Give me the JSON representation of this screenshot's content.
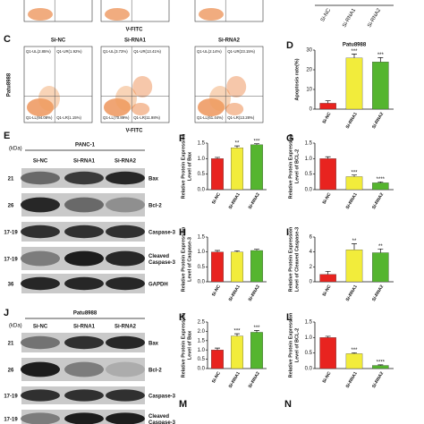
{
  "top_fragment": {
    "x_label": "V-FITC",
    "categories": [
      "Si-NC",
      "Si-RNA1",
      "Si-RNA2"
    ]
  },
  "flow": {
    "label": "C",
    "columns": [
      "Si-NC",
      "Si-RNA1",
      "Si-RNA2"
    ],
    "row_label": "Patu8988",
    "x_label": "V-FITC",
    "quadrants": [
      [
        "Q1-UL(2.85%)",
        "Q1-UR(1.92%)",
        "Q1-LL(94.08%)",
        "Q1-LR(1.15%)"
      ],
      [
        "Q1-UL(3.73%)",
        "Q1-UR(13.41%)",
        "Q1-LL(70.89%)",
        "Q1-LR(11.98%)"
      ],
      [
        "Q1-UL(2.14%)",
        "Q1-UR(23.15%)",
        "Q1-LL(61.44%)",
        "Q1-LR(13.28%)"
      ]
    ]
  },
  "blots": [
    {
      "label": "E",
      "unit": "(kDa)",
      "cell_line": "PANC-1",
      "lanes": [
        "Si-NC",
        "Si-RNA1",
        "Si-RNA2"
      ],
      "rows": [
        {
          "kda": "21",
          "name": [
            "Bax"
          ]
        },
        {
          "kda": "26",
          "name": [
            "Bcl-2"
          ]
        },
        {
          "kda": "17-19",
          "name": [
            "Caspase-3"
          ]
        },
        {
          "kda": "17-19",
          "name": [
            "Cleaved",
            "Caspase-3"
          ]
        },
        {
          "kda": "36",
          "name": [
            "GAPDH"
          ]
        }
      ]
    },
    {
      "label": "J",
      "unit": "(kDa)",
      "cell_line": "Patu8988",
      "lanes": [
        "Si-NC",
        "Si-RNA1",
        "Si-RNA2"
      ],
      "rows": [
        {
          "kda": "21",
          "name": [
            "Bax"
          ]
        },
        {
          "kda": "26",
          "name": [
            "Bcl-2"
          ]
        },
        {
          "kda": "17-19",
          "name": [
            "Caspase-3"
          ]
        },
        {
          "kda": "17-19",
          "name": [
            "Cleaved",
            "Caspase-3"
          ]
        }
      ]
    }
  ],
  "cropped_panels": [
    "M",
    "N"
  ],
  "chart_data": [
    {
      "type": "bar",
      "label": "D",
      "title": "Patu8988",
      "y_label": [
        "Apoptosis rate(%)"
      ],
      "categories": [
        "Si-NC",
        "Si-RNA1",
        "Si-RNA2"
      ],
      "values": [
        3,
        26,
        24
      ],
      "errors": [
        1.3,
        2,
        2.2
      ],
      "significance": [
        null,
        "***",
        "***"
      ],
      "colors": [
        "#e8231f",
        "#f2ec3b",
        "#55b52f"
      ],
      "ylim": [
        0,
        30
      ],
      "yticks": [
        0,
        10,
        20,
        30
      ]
    },
    {
      "type": "bar",
      "label": "F",
      "y_label": [
        "Relative Protein Expression",
        "Level of Bax"
      ],
      "categories": [
        "Si-NC",
        "Si-RNA1",
        "Si-RNA2"
      ],
      "values": [
        1.0,
        1.35,
        1.45
      ],
      "errors": [
        0.04,
        0.06,
        0.03
      ],
      "significance": [
        null,
        "**",
        "***"
      ],
      "colors": [
        "#e8231f",
        "#f2ec3b",
        "#55b52f"
      ],
      "ylim": [
        0,
        1.5
      ],
      "yticks": [
        {
          "value": 0,
          "label": "0.0"
        },
        0.5,
        {
          "value": 1,
          "label": "1.0"
        },
        1.5
      ]
    },
    {
      "type": "bar",
      "label": "G",
      "y_label": [
        "Relative Protein Expression",
        "Level of BCL-2"
      ],
      "categories": [
        "Si-NC",
        "Si-RNA1",
        "Si-RNA2"
      ],
      "values": [
        1.0,
        0.42,
        0.22
      ],
      "errors": [
        0.06,
        0.05,
        0.03
      ],
      "significance": [
        null,
        "***",
        "****"
      ],
      "colors": [
        "#e8231f",
        "#f2ec3b",
        "#55b52f"
      ],
      "ylim": [
        0,
        1.5
      ],
      "yticks": [
        {
          "value": 0,
          "label": "0.0"
        },
        0.5,
        {
          "value": 1,
          "label": "1.0"
        },
        1.5
      ]
    },
    {
      "type": "bar",
      "label": "H",
      "y_label": [
        "Relative Protein Expression",
        "Level of Caspase-3"
      ],
      "categories": [
        "Si-NC",
        "Si-RNA1",
        "Si-RNA2"
      ],
      "values": [
        1.0,
        1.0,
        1.05
      ],
      "errors": [
        0.05,
        0.04,
        0.04
      ],
      "significance": [
        null,
        null,
        null
      ],
      "colors": [
        "#e8231f",
        "#f2ec3b",
        "#55b52f"
      ],
      "ylim": [
        0,
        1.5
      ],
      "yticks": [
        {
          "value": 0,
          "label": "0.0"
        },
        0.5,
        {
          "value": 1,
          "label": "1.0"
        },
        1.5
      ]
    },
    {
      "type": "bar",
      "label": "I",
      "y_label": [
        "Relative Protein Expression",
        "Level of Cleaved Caspase-3"
      ],
      "categories": [
        "Si-NC",
        "Si-RNA1",
        "Si-RNA2"
      ],
      "values": [
        1.0,
        4.3,
        3.9
      ],
      "errors": [
        0.4,
        0.8,
        0.5
      ],
      "significance": [
        null,
        "**",
        "**"
      ],
      "colors": [
        "#e8231f",
        "#f2ec3b",
        "#55b52f"
      ],
      "ylim": [
        0,
        6
      ],
      "yticks": [
        0,
        2,
        4,
        6
      ]
    },
    {
      "type": "bar",
      "label": "K",
      "y_label": [
        "Relative Protein Expression",
        "Level of Bax"
      ],
      "categories": [
        "Si-NC",
        "Si-RNA1",
        "Si-RNA2"
      ],
      "values": [
        1.0,
        1.75,
        1.95
      ],
      "errors": [
        0.1,
        0.12,
        0.1
      ],
      "significance": [
        null,
        "***",
        "***"
      ],
      "colors": [
        "#e8231f",
        "#f2ec3b",
        "#55b52f"
      ],
      "ylim": [
        0,
        2.5
      ],
      "yticks": [
        {
          "value": 0,
          "label": "0.0"
        },
        0.5,
        {
          "value": 1,
          "label": "1.0"
        },
        1.5,
        {
          "value": 2,
          "label": "2.0"
        },
        2.5
      ]
    },
    {
      "type": "bar",
      "label": "L",
      "y_label": [
        "Relative Protein Expression",
        "Level of BCL-2"
      ],
      "categories": [
        "Si-NC",
        "Si-RNA1",
        "Si-RNA2"
      ],
      "values": [
        1.0,
        0.48,
        0.1
      ],
      "errors": [
        0.04,
        0.03,
        0.02
      ],
      "significance": [
        null,
        "***",
        "****"
      ],
      "colors": [
        "#e8231f",
        "#f2ec3b",
        "#55b52f"
      ],
      "ylim": [
        0,
        1.5
      ],
      "yticks": [
        {
          "value": 0,
          "label": "0.0"
        },
        0.5,
        {
          "value": 1,
          "label": "1.0"
        },
        1.5
      ]
    }
  ]
}
